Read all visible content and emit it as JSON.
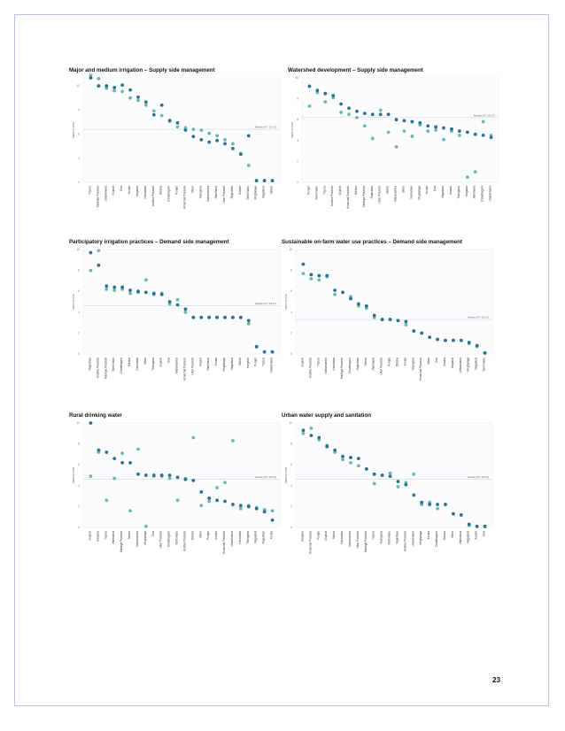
{
  "page": {
    "number": "23"
  },
  "charts": [
    {
      "id": "c1",
      "title": "Major and medium irrigation – Supply side management",
      "ylabel": "Index scores",
      "median_label": "Median (FY 16-17)",
      "chart_data": {
        "type": "scatter",
        "ylim": [
          0,
          13
        ],
        "yticks": [
          0,
          3,
          6,
          9,
          12
        ],
        "ytick_labels": [
          "0",
          "3",
          "6",
          "9",
          "12"
        ],
        "median": 6.6,
        "categories": [
          "Tripura",
          "Madhya Pradesh",
          "Uttarakhand",
          "Gujarat",
          "Goa",
          "Kerala",
          "Haryana",
          "Karnataka",
          "Andhra Pradesh",
          "Odisha",
          "Chhattisgarh",
          "Punjab",
          "Himachal Pradesh",
          "Bihar",
          "Telangana",
          "Maharashtra",
          "Jharkhand",
          "Uttar Pradesh",
          "Rajasthan",
          "Assam",
          "Tamil Nadu",
          "Meghalaya",
          "Nagaland",
          "Sikkim"
        ],
        "series": [
          {
            "values": [
              13.0,
              12.0,
              12.0,
              11.8,
              12.1,
              11.5,
              10.6,
              10.0,
              8.4,
              9.6,
              7.7,
              7.4,
              6.5,
              5.7,
              5.3,
              5.0,
              5.2,
              4.8,
              4.2,
              3.5,
              5.8,
              0.2,
              0.2,
              0.2
            ]
          },
          {
            "values": [
              13.3,
              12.9,
              11.7,
              11.4,
              11.3,
              10.5,
              10.2,
              9.6,
              8.9,
              8.3,
              7.6,
              6.9,
              6.8,
              6.6,
              6.5,
              6.1,
              5.8,
              5.3,
              4.8,
              3.6,
              2.1,
              0.2,
              0.2,
              0.2
            ]
          }
        ]
      }
    },
    {
      "id": "c2",
      "title": "Watershed development – Supply side management",
      "ylabel": "Index scores",
      "median_label": "Median (FY 16-17)",
      "chart_data": {
        "type": "scatter",
        "ylim": [
          0,
          10
        ],
        "yticks": [
          0,
          2,
          4,
          6,
          8,
          10
        ],
        "ytick_labels": [
          "0",
          "2",
          "4",
          "6",
          "8",
          "10"
        ],
        "median": 6.2,
        "categories": [
          "Punjab",
          "Tamil Nadu",
          "Tripura",
          "Andhra Pradesh",
          "Gujarat",
          "Himachal Pradesh",
          "Odisha",
          "Madhya Pradesh",
          "Rajasthan",
          "Uttar Pradesh",
          "Sikkim",
          "Maharashtra",
          "Bihar",
          "Karnataka",
          "Meghalaya",
          "Kerala",
          "Goa",
          "Nagaland",
          "Assam",
          "Telangana",
          "Haryana",
          "Jharkhand",
          "Chhattisgarh",
          "Uttarakhand"
        ],
        "series": [
          {
            "values": [
              9.2,
              8.8,
              8.5,
              8.3,
              7.5,
              7.1,
              6.8,
              6.6,
              6.5,
              6.5,
              6.5,
              6.0,
              5.9,
              5.8,
              5.7,
              5.4,
              5.3,
              5.2,
              5.1,
              4.9,
              4.8,
              4.6,
              4.5,
              4.3
            ]
          },
          {
            "values": [
              7.3,
              8.6,
              7.7,
              8.1,
              6.7,
              6.5,
              6.2,
              5.4,
              4.2,
              6.9,
              4.8,
              3.4,
              4.9,
              4.4,
              5.5,
              4.9,
              5.0,
              4.1,
              4.9,
              4.5,
              0.5,
              1.0,
              5.8,
              4.5
            ]
          }
        ]
      }
    },
    {
      "id": "c3",
      "title": "Participatory irrigation practices – Demand side management",
      "ylabel": "Index scores",
      "median_label": "Median (FY 16-17)",
      "chart_data": {
        "type": "scatter",
        "ylim": [
          0,
          10
        ],
        "yticks": [
          0,
          2,
          4,
          6,
          8,
          10
        ],
        "ytick_labels": [
          "0",
          "2",
          "4",
          "6",
          "8",
          "10"
        ],
        "median": 4.6,
        "categories": [
          "Rajasthan",
          "Andhra Pradesh",
          "Madhya Pradesh",
          "Tamil Nadu",
          "Chhattisgarh",
          "Odisha",
          "Karnataka",
          "Bihar",
          "Telangana",
          "Gujarat",
          "Goa",
          "Maharashtra",
          "Himachal Pradesh",
          "Uttar Pradesh",
          "Assam",
          "Jharkhand",
          "Kerala",
          "Meghalaya",
          "Nagaland",
          "Sikkim",
          "Haryana",
          "Punjab",
          "Tripura",
          "Uttarakhand"
        ],
        "series": [
          {
            "values": [
              9.7,
              8.5,
              6.5,
              6.4,
              6.4,
              6.1,
              6.0,
              5.9,
              5.8,
              5.7,
              5.0,
              4.7,
              4.3,
              3.5,
              3.5,
              3.5,
              3.5,
              3.5,
              3.5,
              3.5,
              3.2,
              0.7,
              0.2,
              0.2
            ]
          },
          {
            "values": [
              8.0,
              9.9,
              6.2,
              6.1,
              6.2,
              5.8,
              5.9,
              7.1,
              5.7,
              5.8,
              4.8,
              5.2,
              4.0,
              3.5,
              3.5,
              3.5,
              3.5,
              3.5,
              3.5,
              3.5,
              2.9,
              0.7,
              0.2,
              0.2
            ]
          }
        ]
      }
    },
    {
      "id": "c4",
      "title": "Sustainable on-farm water use practices – Demand side management",
      "ylabel": "Index scores",
      "median_label": "Median (FY 16-17)",
      "chart_data": {
        "type": "scatter",
        "ylim": [
          0,
          10
        ],
        "yticks": [
          0,
          2,
          4,
          6,
          8,
          10
        ],
        "ytick_labels": [
          "0",
          "2",
          "4",
          "6",
          "8",
          "10"
        ],
        "median": 3.3,
        "categories": [
          "Gujarat",
          "Andhra Pradesh",
          "Tripura",
          "Maharashtra",
          "Karnataka",
          "Madhya Pradesh",
          "Chhattisgarh",
          "Rajasthan",
          "Sikkim",
          "Jharkhand",
          "Uttar Pradesh",
          "Punjab",
          "Odisha",
          "Kerala",
          "Telangana",
          "Himachal Pradesh",
          "Bihar",
          "Goa",
          "Assam",
          "Haryana",
          "Uttarakhand",
          "Meghalaya",
          "Nagaland",
          "Tamil Nadu"
        ],
        "series": [
          {
            "values": [
              8.6,
              7.6,
              7.5,
              7.5,
              6.1,
              5.9,
              5.3,
              4.8,
              4.6,
              3.7,
              3.3,
              3.3,
              3.2,
              3.1,
              2.2,
              2.0,
              1.6,
              1.4,
              1.3,
              1.3,
              1.3,
              1.1,
              0.8,
              0.1
            ]
          },
          {
            "values": [
              7.7,
              7.2,
              7.1,
              7.4,
              5.7,
              5.9,
              5.5,
              4.6,
              4.4,
              3.5,
              3.3,
              3.3,
              3.2,
              2.8,
              2.2,
              2.0,
              1.6,
              1.4,
              1.3,
              1.3,
              1.3,
              1.0,
              0.7,
              0.1
            ]
          }
        ]
      }
    },
    {
      "id": "c5",
      "title": "Rural drinking water",
      "ylabel": "Index scores",
      "median_label": "Median (FY 16-17)",
      "chart_data": {
        "type": "scatter",
        "ylim": [
          0,
          10
        ],
        "yticks": [
          0,
          2,
          4,
          6,
          8,
          10
        ],
        "ytick_labels": [
          "0",
          "2",
          "4",
          "6",
          "8",
          "10"
        ],
        "median": 4.6,
        "categories": [
          "Gujarat",
          "Haryana",
          "Tripura",
          "Jharkhand",
          "Madhya Pradesh",
          "Sikkim",
          "Maharashtra",
          "Meghalaya",
          "Goa",
          "Uttar Pradesh",
          "Chhattisgarh",
          "Tamil Nadu",
          "Andhra Pradesh",
          "Odisha",
          "Bihar",
          "Punjab",
          "Assam",
          "Himachal Pradesh",
          "Uttarakhand",
          "Karnataka",
          "Telangana",
          "Nagaland",
          "Rajasthan",
          "Kerala"
        ],
        "series": [
          {
            "values": [
              10.0,
              7.4,
              7.2,
              6.6,
              6.2,
              6.2,
              5.1,
              5.0,
              5.0,
              5.0,
              5.0,
              4.8,
              4.6,
              4.5,
              3.4,
              2.8,
              2.6,
              2.5,
              2.2,
              2.1,
              2.0,
              1.8,
              1.5,
              0.7
            ]
          },
          {
            "values": [
              4.9,
              7.2,
              2.6,
              4.7,
              7.1,
              1.6,
              7.5,
              0.1,
              4.9,
              4.9,
              4.7,
              2.6,
              4.7,
              8.6,
              2.1,
              2.5,
              3.8,
              4.3,
              8.3,
              1.8,
              2.1,
              1.9,
              1.7,
              1.6
            ]
          }
        ]
      }
    },
    {
      "id": "c6",
      "title": "Urban water supply and sanitation",
      "ylabel": "Index scores",
      "median_label": "Median (FY 16-17)",
      "chart_data": {
        "type": "scatter",
        "ylim": [
          0,
          10
        ],
        "yticks": [
          0,
          2,
          4,
          6,
          8,
          10
        ],
        "ytick_labels": [
          "0",
          "2",
          "4",
          "6",
          "8",
          "10"
        ],
        "median": 4.6,
        "categories": [
          "Haryana",
          "Himachal Pradesh",
          "Punjab",
          "Gujarat",
          "Sikkim",
          "Karnataka",
          "Maharashtra",
          "Uttar Pradesh",
          "Madhya Pradesh",
          "Tripura",
          "Telangana",
          "Tamil Nadu",
          "Rajasthan",
          "Andhra Pradesh",
          "Uttarakhand",
          "Meghalaya",
          "Kerala",
          "Chhattisgarh",
          "Odisha",
          "Bihar",
          "Jharkhand",
          "Nagaland",
          "Assam",
          "Goa"
        ],
        "series": [
          {
            "values": [
              9.3,
              8.8,
              8.6,
              7.8,
              7.4,
              6.8,
              6.7,
              6.6,
              5.6,
              5.1,
              5.0,
              4.9,
              4.4,
              4.1,
              3.1,
              2.4,
              2.2,
              2.2,
              2.2,
              1.3,
              1.2,
              0.3,
              0.1,
              0.1
            ]
          },
          {
            "values": [
              9.0,
              9.5,
              8.4,
              7.7,
              7.2,
              6.5,
              6.2,
              5.9,
              5.6,
              4.2,
              5.0,
              5.2,
              3.9,
              4.3,
              5.1,
              2.2,
              2.4,
              1.8,
              2.2,
              1.3,
              1.2,
              0.2,
              0.1,
              0.1
            ]
          }
        ]
      }
    }
  ]
}
